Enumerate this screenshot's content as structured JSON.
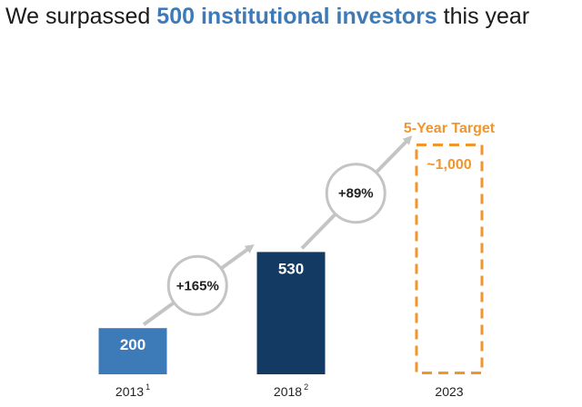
{
  "headline": {
    "prefix": "We surpassed ",
    "highlight": "500 institutional investors",
    "suffix": " this year",
    "highlight_color": "#3d7ab8"
  },
  "chart_data": {
    "type": "bar",
    "categories": [
      "2013",
      "2018",
      "2023"
    ],
    "footnotes": [
      "1",
      "2",
      ""
    ],
    "values": [
      200,
      530,
      1000
    ],
    "value_labels": [
      "200",
      "530",
      "~1,000"
    ],
    "bar_styles": [
      "solid",
      "solid",
      "dashed"
    ],
    "bar_colors": [
      "#3d7ab8",
      "#123a63",
      "#f0962e"
    ],
    "target_title": "5-Year Target",
    "growth": [
      "+165%",
      "+89%"
    ],
    "ylim": [
      0,
      1100
    ]
  }
}
